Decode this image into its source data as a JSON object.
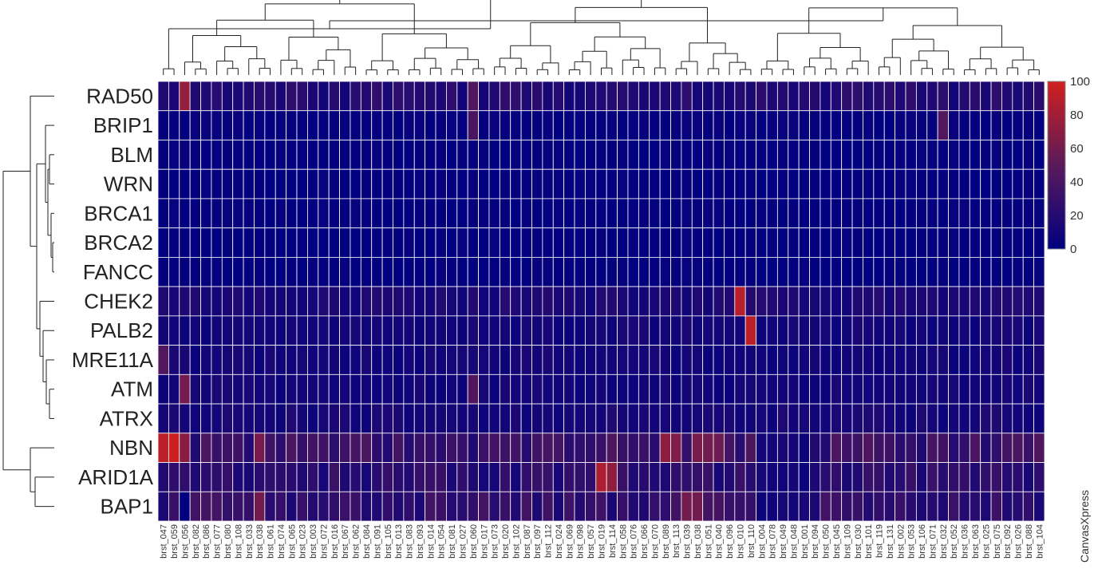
{
  "chart_data": {
    "type": "heatmap",
    "title": "",
    "credit": "CanvasXpress",
    "rows": [
      "RAD50",
      "BRIP1",
      "BLM",
      "WRN",
      "BRCA1",
      "BRCA2",
      "FANCC",
      "CHEK2",
      "PALB2",
      "MRE11A",
      "ATM",
      "ATRX",
      "NBN",
      "ARID1A",
      "BAP1"
    ],
    "columns": [
      "brst_047",
      "brst_059",
      "brst_056",
      "brst_082",
      "brst_086",
      "brst_077",
      "brst_080",
      "brst_108",
      "brst_033",
      "brst_038",
      "brst_061",
      "brst_074",
      "brst_065",
      "brst_023",
      "brst_003",
      "brst_072",
      "brst_016",
      "brst_067",
      "brst_062",
      "brst_084",
      "brst_091",
      "brst_105",
      "brst_013",
      "brst_083",
      "brst_093",
      "brst_014",
      "brst_054",
      "brst_081",
      "brst_027",
      "brst_060",
      "brst_017",
      "brst_073",
      "brst_020",
      "brst_102",
      "brst_087",
      "brst_097",
      "brst_112",
      "brst_024",
      "brst_069",
      "brst_098",
      "brst_057",
      "brst_019",
      "brst_114",
      "brst_058",
      "brst_076",
      "brst_066",
      "brst_070",
      "brst_089",
      "brst_113",
      "brst_039",
      "brst_038",
      "brst_051",
      "brst_040",
      "brst_096",
      "brst_010",
      "brst_110",
      "brst_004",
      "brst_078",
      "brst_049",
      "brst_048",
      "brst_001",
      "brst_094",
      "brst_050",
      "brst_045",
      "brst_109",
      "brst_030",
      "brst_101",
      "brst_119",
      "brst_131",
      "brst_002",
      "brst_053",
      "brst_106",
      "brst_071",
      "brst_032",
      "brst_052",
      "brst_036",
      "brst_063",
      "brst_025",
      "brst_075",
      "brst_092",
      "brst_026",
      "brst_088",
      "brst_104"
    ],
    "color_scale": {
      "min": 0,
      "max": 100,
      "ticks": [
        0,
        20,
        40,
        60,
        80,
        100
      ],
      "low_color": "#000080",
      "high_color": "#d02020"
    },
    "base_level": [
      18,
      3,
      2,
      2,
      2,
      2,
      2,
      14,
      10,
      10,
      10,
      12,
      30,
      22,
      26
    ],
    "hotspots": [
      {
        "row": "RAD50",
        "column": "brst_056",
        "value": 75
      },
      {
        "row": "NBN",
        "column": "brst_047",
        "value": 92
      },
      {
        "row": "NBN",
        "column": "brst_059",
        "value": 98
      },
      {
        "row": "NBN",
        "column": "brst_056",
        "value": 70
      },
      {
        "row": "ATM",
        "column": "brst_056",
        "value": 60
      },
      {
        "row": "BRIP1",
        "column": "brst_060",
        "value": 40
      },
      {
        "row": "BRIP1",
        "column": "brst_032",
        "value": 45
      },
      {
        "row": "CHEK2",
        "column": "brst_010",
        "value": 90
      },
      {
        "row": "PALB2",
        "column": "brst_110",
        "value": 92
      },
      {
        "row": "ARID1A",
        "column": "brst_019",
        "value": 85
      },
      {
        "row": "ARID1A",
        "column": "brst_114",
        "value": 72
      },
      {
        "row": "NBN",
        "column": "brst_089",
        "value": 72
      },
      {
        "row": "NBN",
        "column": "brst_113",
        "value": 66
      },
      {
        "row": "NBN",
        "column": "brst_038",
        "value": 62
      },
      {
        "row": "BAP1",
        "column": "brst_039",
        "value": 60
      },
      {
        "row": "BAP1",
        "column": "brst_038",
        "value": 60
      },
      {
        "row": "RAD50",
        "column": "brst_060",
        "value": 45
      },
      {
        "row": "MRE11A",
        "column": "brst_047",
        "value": 45
      },
      {
        "row": "ATM",
        "column": "brst_060",
        "value": 45
      },
      {
        "row": "NBN",
        "column": "brst_051",
        "value": 60
      },
      {
        "row": "NBN",
        "column": "brst_040",
        "value": 58
      }
    ],
    "low_spots": [
      {
        "row": "BAP1",
        "column": "brst_056",
        "value": 0
      }
    ],
    "low_column_ranges": [
      "brst_004",
      "brst_001"
    ]
  }
}
